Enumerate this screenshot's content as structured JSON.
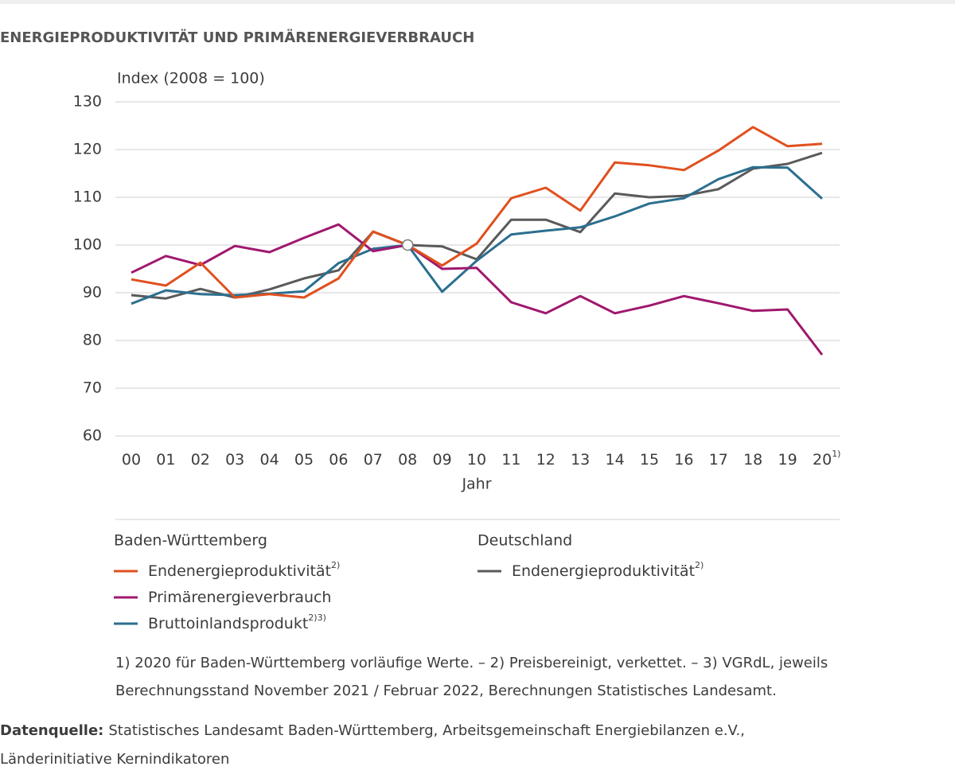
{
  "chart_data": {
    "type": "line",
    "title": "ENERGIEPRODUKTIVITÄT UND PRIMÄRENERGIEVERBRAUCH",
    "y_label": "Index (2008 = 100)",
    "x_label": "Jahr",
    "categories": [
      "00",
      "01",
      "02",
      "03",
      "04",
      "05",
      "06",
      "07",
      "08",
      "09",
      "10",
      "11",
      "12",
      "13",
      "14",
      "15",
      "16",
      "17",
      "18",
      "19",
      "20"
    ],
    "last_category_note": "1)",
    "ylim": [
      60,
      130
    ],
    "yticks": [
      60,
      70,
      80,
      90,
      100,
      110,
      120,
      130
    ],
    "grid": true,
    "base_marker": {
      "category": 8,
      "value": 100
    },
    "legend_groups": [
      "Baden-Württemberg",
      "Deutschland"
    ],
    "series": [
      {
        "name": "Endenergieproduktivität",
        "name_note": "2)",
        "group": 0,
        "color": "#e0501e",
        "values": [
          92.8,
          91.5,
          96.3,
          89,
          89.7,
          89,
          93,
          102.8,
          100,
          95.7,
          100.3,
          109.8,
          112,
          107.2,
          117.3,
          116.7,
          115.7,
          119.8,
          124.7,
          120.7,
          121.2
        ]
      },
      {
        "name": "Primärenergieverbrauch",
        "group": 0,
        "color": "#a0186e",
        "values": [
          94.2,
          97.7,
          95.8,
          99.8,
          98.5,
          101.5,
          104.3,
          98.7,
          100,
          95,
          95.2,
          88,
          85.7,
          89.3,
          85.7,
          87.3,
          89.3,
          87.8,
          86.2,
          86.5,
          77
        ]
      },
      {
        "name": "Bruttoinlandsprodukt",
        "name_note": "2)3)",
        "group": 0,
        "color": "#2b6f8f",
        "values": [
          87.7,
          90.5,
          89.7,
          89.5,
          89.8,
          90.3,
          96.2,
          99.2,
          100,
          90.2,
          96.7,
          102.2,
          103,
          103.7,
          106,
          108.7,
          109.8,
          113.8,
          116.3,
          116.2,
          109.7
        ]
      },
      {
        "name": "Endenergieproduktivität",
        "name_note": "2)",
        "group": 1,
        "color": "#5a5a5a",
        "values": [
          89.5,
          88.8,
          90.8,
          89,
          90.7,
          93,
          94.7,
          102.8,
          100,
          99.7,
          97,
          105.3,
          105.3,
          102.7,
          110.8,
          110,
          110.3,
          111.7,
          116,
          117,
          119.3
        ]
      }
    ],
    "notes": [
      "1) 2020 für Baden-Württemberg vorläufige Werte. – 2) Preisbereinigt, verkettet. – 3) VGRdL, jeweils",
      "Berechnungsstand November 2021 / Februar 2022, Berechnungen Statistisches Landesamt."
    ],
    "source_label": "Datenquelle:",
    "source": [
      "Statistisches Landesamt Baden-Württemberg, Arbeitsgemeinschaft Energiebilanzen e.V.,",
      "Länderinitiative Kernindikatoren"
    ]
  }
}
